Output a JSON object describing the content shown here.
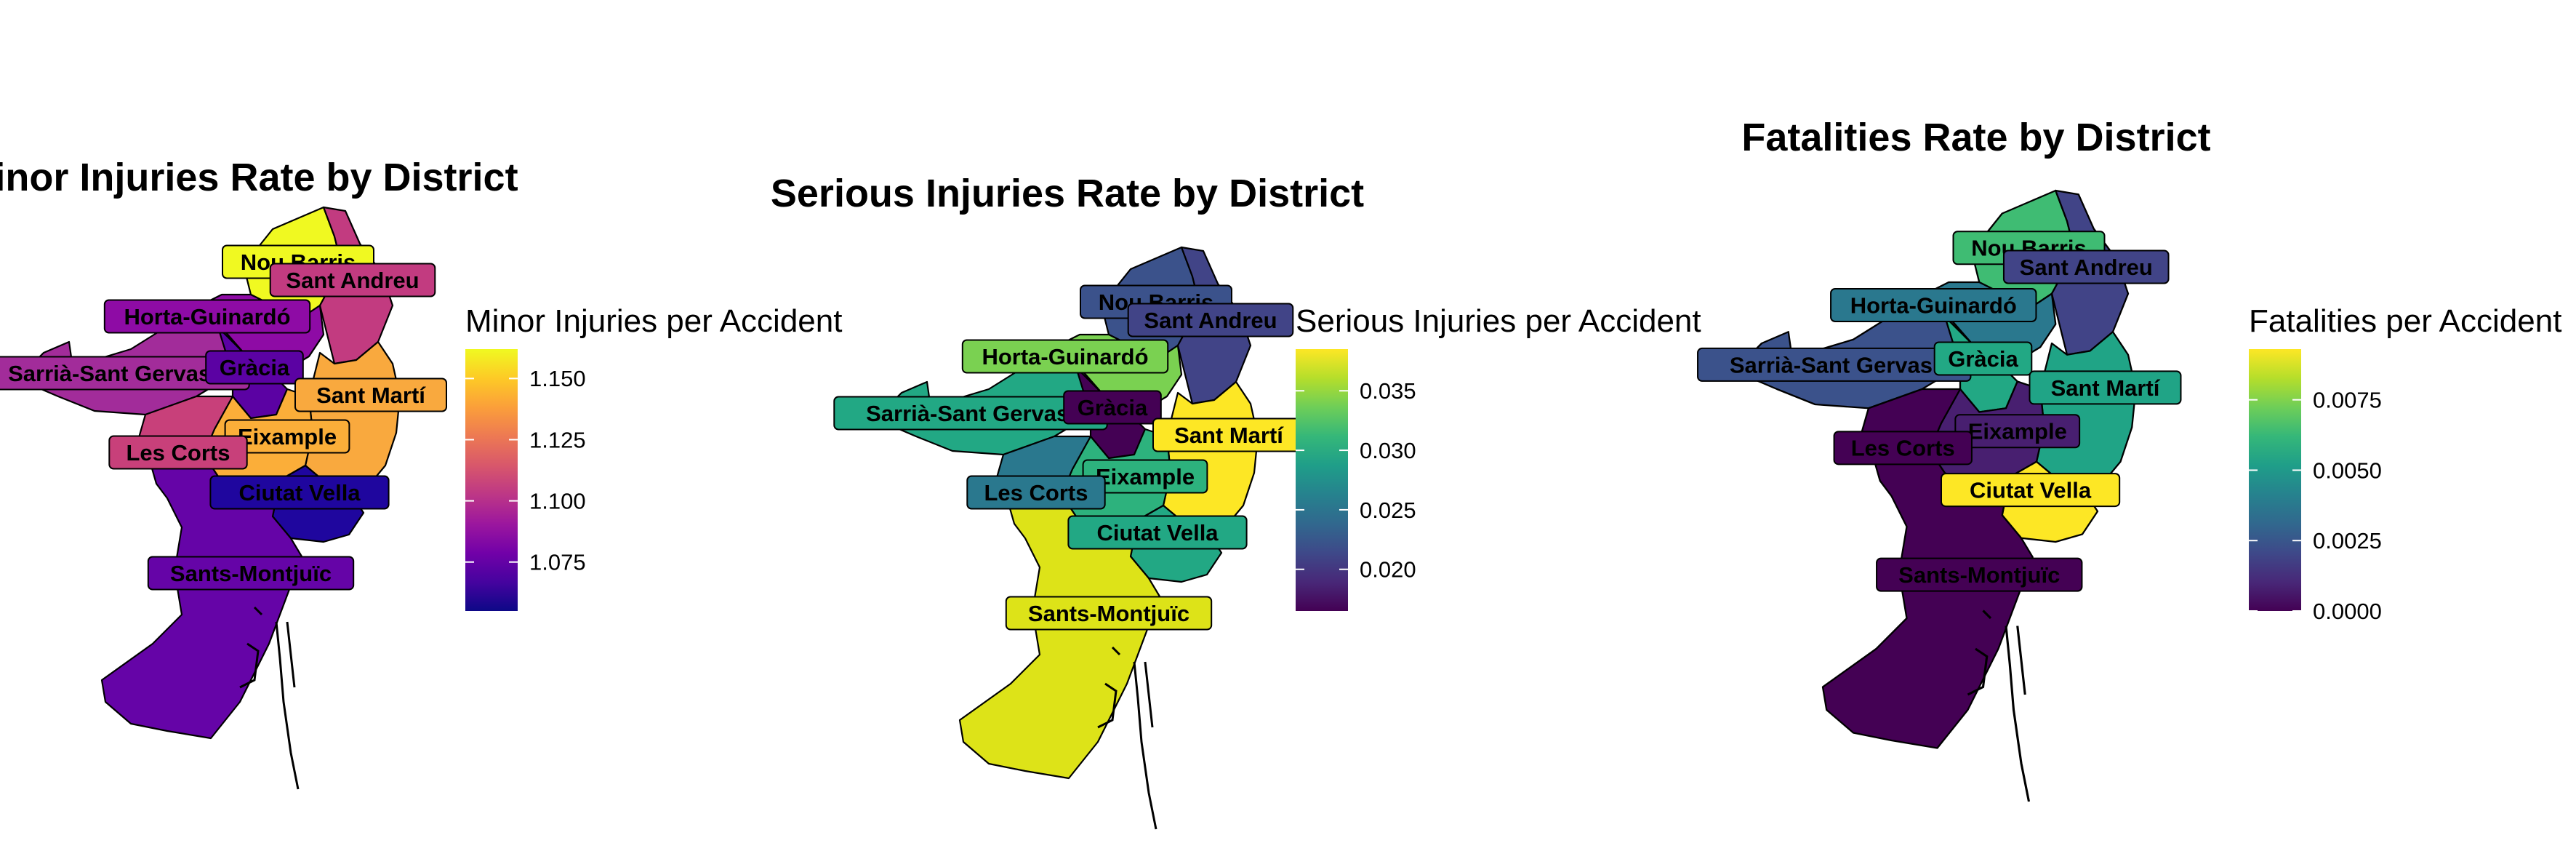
{
  "panels": [
    {
      "title": "Minor Injuries Rate by District",
      "legend_title": "Minor Injuries per Accident",
      "palette": "plasma",
      "scale": {
        "min": 1.055,
        "max": 1.162
      },
      "ticks": [
        "1.075",
        "1.100",
        "1.125",
        "1.150"
      ],
      "tick_values": [
        1.075,
        1.1,
        1.125,
        1.15
      ],
      "districts": [
        {
          "name": "Nou Barris",
          "value": 1.162,
          "color": "#f0f921"
        },
        {
          "name": "Sant Andreu",
          "value": 1.092,
          "color": "#c23b80"
        },
        {
          "name": "Horta-Guinardó",
          "value": 1.078,
          "color": "#8e0ba5"
        },
        {
          "name": "Sarrià-Sant Gervasi",
          "value": 1.085,
          "color": "#a22c9a"
        },
        {
          "name": "Gràcia",
          "value": 1.063,
          "color": "#5b02a3"
        },
        {
          "name": "Sant Martí",
          "value": 1.142,
          "color": "#f9a93e"
        },
        {
          "name": "Eixample",
          "value": 1.144,
          "color": "#fbae39"
        },
        {
          "name": "Les Corts",
          "value": 1.094,
          "color": "#c8407a"
        },
        {
          "name": "Ciutat Vella",
          "value": 1.055,
          "color": "#1f069e"
        },
        {
          "name": "Sants-Montjuïc",
          "value": 1.066,
          "color": "#6504a7"
        }
      ]
    },
    {
      "title": "Serious Injuries Rate by District",
      "legend_title": "Serious Injuries per Accident",
      "palette": "viridis",
      "scale": {
        "min": 0.0165,
        "max": 0.0385
      },
      "ticks": [
        "0.020",
        "0.025",
        "0.030",
        "0.035"
      ],
      "tick_values": [
        0.02,
        0.025,
        0.03,
        0.035
      ],
      "districts": [
        {
          "name": "Nou Barris",
          "value": 0.0215,
          "color": "#3b528b"
        },
        {
          "name": "Sant Andreu",
          "value": 0.0195,
          "color": "#414487"
        },
        {
          "name": "Horta-Guinardó",
          "value": 0.0335,
          "color": "#7ad151"
        },
        {
          "name": "Sarrià-Sant Gervasi",
          "value": 0.0295,
          "color": "#22a884"
        },
        {
          "name": "Gràcia",
          "value": 0.0168,
          "color": "#440154"
        },
        {
          "name": "Sant Martí",
          "value": 0.0375,
          "color": "#fde725"
        },
        {
          "name": "Eixample",
          "value": 0.0305,
          "color": "#2db27d"
        },
        {
          "name": "Les Corts",
          "value": 0.0255,
          "color": "#2a788e"
        },
        {
          "name": "Ciutat Vella",
          "value": 0.0302,
          "color": "#22a884"
        },
        {
          "name": "Sants-Montjuïc",
          "value": 0.0368,
          "color": "#dde318"
        }
      ]
    },
    {
      "title": "Fatalities Rate by District",
      "legend_title": "Fatalities per Accident",
      "palette": "viridis",
      "scale": {
        "min": 0.0,
        "max": 0.0093
      },
      "ticks": [
        "0.0000",
        "0.0025",
        "0.0050",
        "0.0075"
      ],
      "tick_values": [
        0.0,
        0.0025,
        0.005,
        0.0075
      ],
      "districts": [
        {
          "name": "Nou Barris",
          "value": 0.0068,
          "color": "#3fbc73"
        },
        {
          "name": "Sant Andreu",
          "value": 0.0012,
          "color": "#414487"
        },
        {
          "name": "Horta-Guinardó",
          "value": 0.0032,
          "color": "#2a788e"
        },
        {
          "name": "Sarrià-Sant Gervasi",
          "value": 0.0018,
          "color": "#3b528b"
        },
        {
          "name": "Gràcia",
          "value": 0.0052,
          "color": "#22a884"
        },
        {
          "name": "Sant Martí",
          "value": 0.0053,
          "color": "#20a486"
        },
        {
          "name": "Eixample",
          "value": 0.0005,
          "color": "#481f70"
        },
        {
          "name": "Les Corts",
          "value": 0.0001,
          "color": "#440154"
        },
        {
          "name": "Ciutat Vella",
          "value": 0.0093,
          "color": "#fde725"
        },
        {
          "name": "Sants-Montjuïc",
          "value": 0.0002,
          "color": "#440154"
        }
      ]
    }
  ]
}
